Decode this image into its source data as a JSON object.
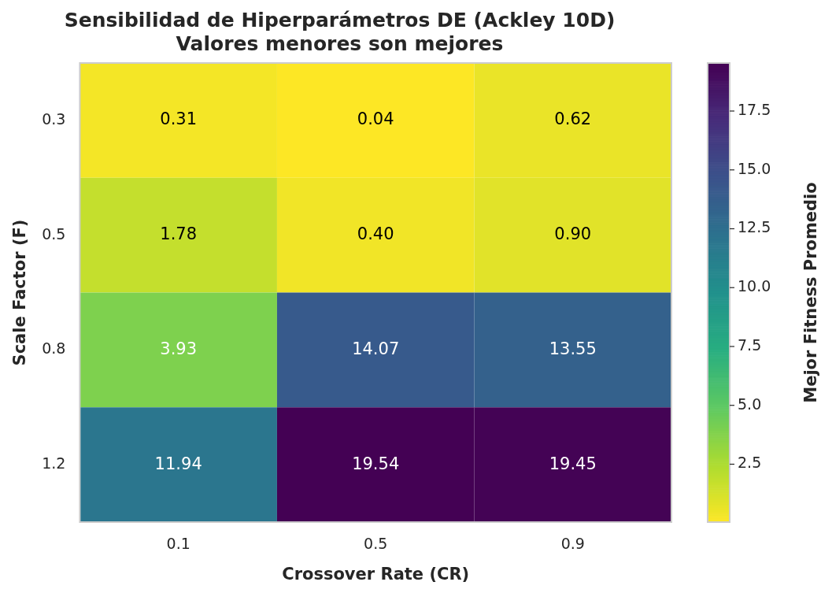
{
  "chart_data": {
    "type": "heatmap",
    "title": "Sensibilidad de Hiperparámetros DE (Ackley 10D)",
    "subtitle": "Valores menores son mejores",
    "xlabel": "Crossover Rate (CR)",
    "ylabel": "Scale Factor (F)",
    "clabel": "Mejor Fitness Promedio",
    "categories": [
      "0.1",
      "0.5",
      "0.9"
    ],
    "y_categories": [
      "0.3",
      "0.5",
      "0.8",
      "1.2"
    ],
    "cells": [
      [
        0.31,
        0.04,
        0.62
      ],
      [
        1.78,
        0.4,
        0.9
      ],
      [
        3.93,
        14.07,
        13.55
      ],
      [
        11.94,
        19.54,
        19.45
      ]
    ],
    "cell_labels": [
      [
        "0.31",
        "0.04",
        "0.62"
      ],
      [
        "1.78",
        "0.40",
        "0.90"
      ],
      [
        "3.93",
        "14.07",
        "13.55"
      ],
      [
        "11.94",
        "19.54",
        "19.45"
      ]
    ],
    "clim": [
      0.04,
      19.54
    ],
    "cticks": [
      2.5,
      {
        "value": 5,
        "label": "5.0"
      },
      7.5,
      {
        "value": 10,
        "label": "10.0"
      },
      12.5,
      {
        "value": 15,
        "label": "15.0"
      },
      17.5
    ]
  }
}
